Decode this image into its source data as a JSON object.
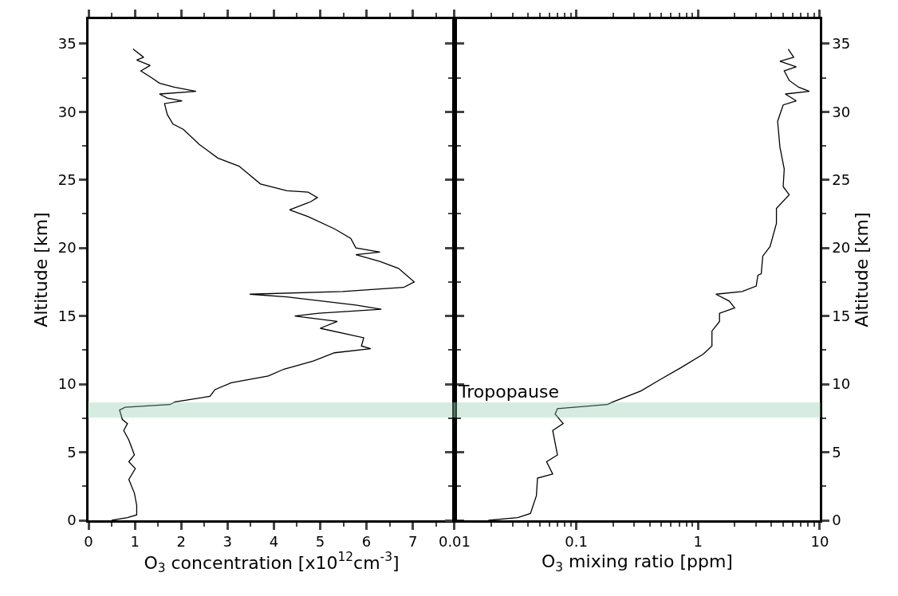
{
  "chart_data": [
    {
      "type": "line",
      "xlabel": "O$_{3}$ concentration [x10$^{12}$cm$^{-3}$]",
      "ylabel": "Altitude [km]",
      "xlim": [
        0,
        7.9
      ],
      "xticks": [
        0,
        1,
        2,
        3,
        4,
        5,
        6,
        7
      ],
      "ylim": [
        0,
        36.8
      ],
      "yticks": [
        0,
        5,
        10,
        15,
        20,
        25,
        30,
        35
      ],
      "grid": false,
      "bands": [
        {
          "axis": "y",
          "from": 7.6,
          "to": 8.6,
          "color": "#8fc9a8"
        }
      ],
      "series": [
        {
          "color": "#000000",
          "x": [
            0.96,
            1.19,
            1.04,
            1.33,
            1.13,
            1.36,
            1.53,
            1.85,
            2.32,
            1.53,
            1.7,
            2.02,
            1.64,
            1.7,
            1.82,
            2.05,
            2.39,
            2.79,
            3.25,
            3.71,
            4.28,
            4.74,
            4.94,
            4.8,
            4.34,
            4.74,
            5.31,
            5.66,
            5.77,
            6.29,
            5.77,
            6.29,
            6.69,
            6.86,
            7.03,
            6.8,
            5.48,
            3.48,
            4.28,
            5.77,
            6.32,
            4.97,
            4.45,
            5.37,
            5.0,
            5.94,
            5.89,
            6.09,
            5.31,
            4.85,
            4.22,
            3.88,
            3.08,
            2.73,
            2.62,
            1.87,
            1.76,
            0.79,
            0.67,
            0.73,
            0.84,
            0.76,
            0.87,
            0.99,
            0.87,
            1.01,
            0.87,
            0.99,
            1.04,
            1.04,
            0.84,
            0.5
          ],
          "values": [
            34.6,
            34.0,
            33.8,
            33.4,
            33.0,
            32.5,
            32.1,
            31.8,
            31.5,
            31.3,
            31.0,
            30.8,
            30.6,
            29.8,
            29.1,
            28.7,
            27.6,
            26.6,
            26.0,
            24.7,
            24.2,
            24.1,
            23.7,
            23.4,
            22.8,
            22.3,
            21.4,
            20.7,
            20.0,
            19.7,
            19.5,
            19.0,
            18.5,
            18.0,
            17.5,
            17.1,
            16.8,
            16.6,
            16.4,
            15.8,
            15.5,
            15.2,
            15.0,
            14.6,
            14.1,
            13.4,
            12.8,
            12.6,
            12.3,
            11.7,
            11.1,
            10.6,
            10.1,
            9.6,
            9.1,
            8.7,
            8.5,
            8.3,
            8.1,
            7.4,
            7.1,
            6.6,
            5.9,
            4.8,
            4.3,
            3.8,
            3.0,
            2.0,
            1.1,
            0.4,
            0.2,
            0.0
          ]
        }
      ]
    },
    {
      "type": "line",
      "xlabel": "O$_{3}$ mixing ratio [ppm]",
      "ylabel": "Altitude [km]",
      "log": "x",
      "xlim": [
        0.01,
        10
      ],
      "xticks": [
        0.01,
        0.1,
        1,
        10
      ],
      "ylim": [
        0,
        36.8
      ],
      "yticks": [
        0,
        5,
        10,
        15,
        20,
        25,
        30,
        35
      ],
      "grid": false,
      "bands": [
        {
          "axis": "y",
          "from": 7.6,
          "to": 8.6,
          "color": "#8fc9a8",
          "label": "Tropopause"
        }
      ],
      "series": [
        {
          "color": "#000000",
          "x": [
            5.5,
            6.1,
            4.7,
            6.4,
            5.1,
            5.6,
            6.7,
            8.2,
            5.2,
            6.4,
            5.0,
            4.5,
            4.7,
            5.1,
            5.0,
            5.6,
            4.4,
            4.4,
            3.9,
            3.4,
            3.3,
            3.1,
            3.0,
            2.3,
            1.4,
            1.8,
            2.0,
            1.5,
            1.5,
            1.3,
            1.3,
            1.1,
            0.72,
            0.48,
            0.34,
            0.2,
            0.18,
            0.07,
            0.067,
            0.078,
            0.064,
            0.07,
            0.057,
            0.064,
            0.048,
            0.047,
            0.042,
            0.033,
            0.019
          ],
          "values": [
            34.6,
            34.0,
            33.7,
            33.3,
            33.0,
            32.3,
            31.8,
            31.5,
            31.3,
            30.8,
            30.5,
            29.3,
            27.4,
            25.8,
            24.5,
            23.9,
            22.9,
            21.8,
            20.1,
            19.4,
            18.1,
            18.0,
            17.2,
            16.8,
            16.6,
            16.1,
            15.6,
            15.2,
            14.6,
            13.9,
            12.8,
            12.2,
            11.2,
            10.3,
            9.5,
            8.7,
            8.5,
            8.2,
            7.8,
            7.1,
            6.6,
            4.8,
            4.3,
            3.4,
            3.1,
            1.8,
            0.5,
            0.2,
            0.0
          ]
        }
      ]
    }
  ]
}
